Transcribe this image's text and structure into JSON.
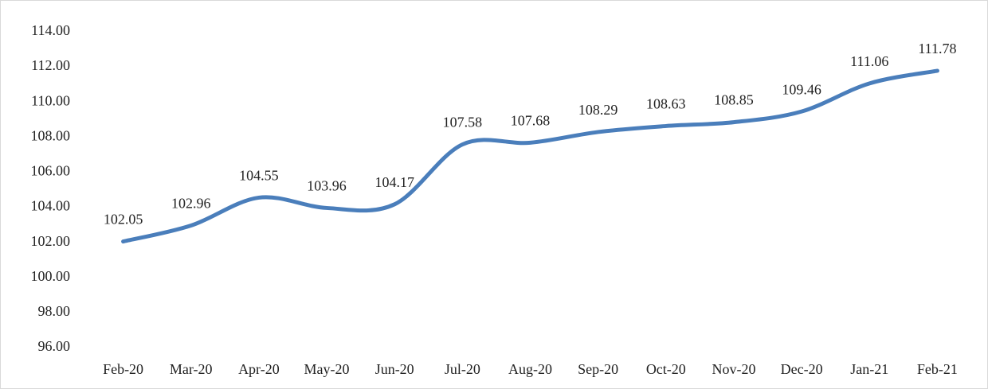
{
  "chart_data": {
    "type": "line",
    "categories": [
      "Feb-20",
      "Mar-20",
      "Apr-20",
      "May-20",
      "Jun-20",
      "Jul-20",
      "Aug-20",
      "Sep-20",
      "Oct-20",
      "Nov-20",
      "Dec-20",
      "Jan-21",
      "Feb-21"
    ],
    "series": [
      {
        "color": "#4a7ebb",
        "values": [
          102.05,
          102.96,
          104.55,
          103.96,
          104.17,
          107.58,
          107.68,
          108.29,
          108.63,
          108.85,
          109.46,
          111.06,
          111.78
        ]
      }
    ],
    "ylim": [
      96,
      114
    ],
    "yticks": [
      {
        "value": 96,
        "label": "96.00"
      },
      {
        "value": 98,
        "label": "98.00"
      },
      {
        "value": 100,
        "label": "100.00"
      },
      {
        "value": 102,
        "label": "102.00"
      },
      {
        "value": 104,
        "label": "104.00"
      },
      {
        "value": 106,
        "label": "106.00"
      },
      {
        "value": 108,
        "label": "108.00"
      },
      {
        "value": 110,
        "label": "110.00"
      },
      {
        "value": 112,
        "label": "112.00"
      },
      {
        "value": 114,
        "label": "114.00"
      }
    ],
    "grid": false,
    "smooth": true
  }
}
